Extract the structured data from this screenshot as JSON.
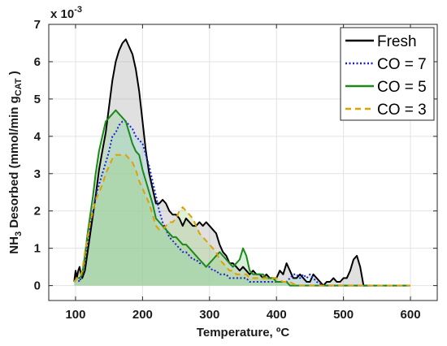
{
  "chart_data": {
    "type": "area",
    "xlabel": "Temperature, ºC",
    "ylabel": "NH3 Desorbed (mmol/min gCAT)",
    "ylabel_parts": {
      "pre": "NH",
      "sub1": "3",
      "mid": " Desorbed (mmol/min g",
      "sub2": "CAT",
      "post": " )"
    },
    "y_multiplier": "x 10",
    "y_multiplier_exp": "-3",
    "xlim": [
      60,
      640
    ],
    "ylim": [
      -0.0004,
      0.007
    ],
    "x_ticks": [
      100,
      200,
      300,
      400,
      500,
      600
    ],
    "x_tick_labels": [
      "100",
      "200",
      "300",
      "400",
      "500",
      "600"
    ],
    "y_ticks": [
      0,
      0.001,
      0.002,
      0.003,
      0.004,
      0.005,
      0.006,
      0.007
    ],
    "y_tick_labels": [
      "0",
      "1",
      "2",
      "3",
      "4",
      "5",
      "6",
      "7"
    ],
    "grid": true,
    "legend_position": "top-right",
    "series": [
      {
        "name": "Fresh",
        "color": "#000000",
        "fill": "#a0a0a0",
        "style": "solid",
        "x": [
          98,
          100,
          102,
          104,
          106,
          108,
          110,
          114,
          118,
          122,
          126,
          130,
          135,
          140,
          145,
          150,
          155,
          160,
          165,
          170,
          175,
          180,
          185,
          190,
          195,
          200,
          205,
          210,
          215,
          220,
          225,
          230,
          235,
          240,
          245,
          250,
          255,
          260,
          265,
          270,
          275,
          280,
          285,
          290,
          295,
          300,
          305,
          310,
          315,
          320,
          325,
          330,
          335,
          340,
          345,
          350,
          355,
          360,
          365,
          370,
          375,
          380,
          385,
          390,
          395,
          400,
          405,
          410,
          415,
          420,
          425,
          430,
          435,
          440,
          445,
          450,
          455,
          460,
          465,
          470,
          475,
          480,
          485,
          490,
          495,
          500,
          505,
          510,
          515,
          520,
          525,
          530,
          535,
          540
        ],
        "y": [
          0.0001,
          0.0004,
          0.0002,
          0.0004,
          0.0005,
          0.0003,
          0.0002,
          0.0004,
          0.0009,
          0.0014,
          0.0019,
          0.0024,
          0.0031,
          0.0036,
          0.0041,
          0.0048,
          0.0055,
          0.006,
          0.0063,
          0.0065,
          0.0066,
          0.0064,
          0.0062,
          0.0058,
          0.0052,
          0.0044,
          0.0036,
          0.003,
          0.0026,
          0.0022,
          0.0022,
          0.0023,
          0.0022,
          0.002,
          0.0019,
          0.0019,
          0.0018,
          0.0016,
          0.0018,
          0.0017,
          0.0016,
          0.0016,
          0.0017,
          0.0016,
          0.0017,
          0.0016,
          0.0015,
          0.0014,
          0.0011,
          0.0009,
          0.0008,
          0.0006,
          0.0006,
          0.0005,
          0.0004,
          0.0005,
          0.0004,
          0.0003,
          0.0004,
          0.0003,
          0.0003,
          0.0002,
          0.0003,
          0.0002,
          0.0002,
          0.0002,
          0.0004,
          0.0003,
          0.0006,
          0.0004,
          0.0002,
          0.0002,
          0.0003,
          0.0002,
          0.0001,
          0.0001,
          0.0003,
          0.0002,
          0.0001,
          0.0,
          0.0001,
          0.0001,
          0.0002,
          0.0001,
          0.0001,
          0.0002,
          0.0002,
          0.0004,
          0.0007,
          0.0008,
          0.0005,
          0.0,
          0.0,
          0.0
        ]
      },
      {
        "name": "CO = 7",
        "color": "#1f1fd6",
        "fill": "#9fd9e0",
        "style": "dotted",
        "x": [
          98,
          102,
          106,
          110,
          114,
          118,
          122,
          126,
          130,
          135,
          140,
          145,
          150,
          155,
          160,
          165,
          170,
          175,
          180,
          185,
          190,
          195,
          200,
          205,
          210,
          215,
          220,
          225,
          230,
          235,
          240,
          245,
          250,
          255,
          260,
          265,
          270,
          275,
          280,
          285,
          290,
          295,
          300,
          305,
          310,
          315,
          320,
          325,
          330,
          335,
          340,
          345,
          350,
          355,
          360,
          365,
          370,
          375,
          380,
          385,
          390,
          395,
          400,
          405,
          410,
          415,
          420,
          425,
          430,
          435,
          440,
          445,
          450,
          455,
          460,
          470,
          480,
          600
        ],
        "y": [
          0.0001,
          0.0002,
          0.0001,
          0.0003,
          0.0007,
          0.0012,
          0.0017,
          0.002,
          0.0024,
          0.0027,
          0.003,
          0.0033,
          0.0036,
          0.004,
          0.0041,
          0.0043,
          0.0044,
          0.0044,
          0.0043,
          0.0042,
          0.004,
          0.0039,
          0.0038,
          0.0035,
          0.0032,
          0.0028,
          0.0024,
          0.002,
          0.0017,
          0.0015,
          0.0013,
          0.0012,
          0.0011,
          0.001,
          0.0009,
          0.0009,
          0.0008,
          0.0007,
          0.0007,
          0.0006,
          0.0006,
          0.0005,
          0.0005,
          0.0004,
          0.0004,
          0.0003,
          0.0003,
          0.0003,
          0.0002,
          0.0002,
          0.0002,
          0.0002,
          0.0002,
          0.0002,
          0.0001,
          0.0001,
          0.0001,
          0.0001,
          0.0001,
          0.0001,
          0.0001,
          0.0001,
          0.0001,
          0.0001,
          0.0001,
          0.0001,
          0.0002,
          0.0003,
          0.0003,
          0.0002,
          0.0003,
          0.0002,
          0.0003,
          0.0002,
          0.0001,
          0.0,
          0.0,
          0.0
        ]
      },
      {
        "name": "CO = 5",
        "color": "#1a8a1a",
        "fill": "#8fd08f",
        "style": "solid",
        "x": [
          98,
          102,
          106,
          110,
          114,
          118,
          122,
          126,
          130,
          135,
          140,
          145,
          150,
          155,
          160,
          165,
          170,
          175,
          180,
          185,
          190,
          195,
          200,
          205,
          210,
          215,
          220,
          225,
          230,
          235,
          240,
          245,
          250,
          255,
          260,
          265,
          270,
          275,
          280,
          285,
          290,
          295,
          300,
          305,
          310,
          315,
          320,
          325,
          330,
          335,
          340,
          345,
          350,
          355,
          360,
          365,
          370,
          375,
          380,
          385,
          390,
          395,
          400,
          405,
          410,
          415,
          420,
          430,
          440,
          450,
          600
        ],
        "y": [
          0.0001,
          0.0002,
          0.0002,
          0.0003,
          0.0008,
          0.0014,
          0.0019,
          0.0024,
          0.003,
          0.0036,
          0.004,
          0.0044,
          0.0045,
          0.0046,
          0.0047,
          0.0046,
          0.0045,
          0.0044,
          0.0041,
          0.0038,
          0.0036,
          0.0035,
          0.0031,
          0.0028,
          0.0025,
          0.0022,
          0.0018,
          0.0017,
          0.0016,
          0.0015,
          0.0014,
          0.0013,
          0.0013,
          0.0012,
          0.0011,
          0.0011,
          0.001,
          0.0009,
          0.0008,
          0.0007,
          0.0006,
          0.0005,
          0.0006,
          0.0007,
          0.0008,
          0.0009,
          0.0008,
          0.0007,
          0.0006,
          0.0005,
          0.0006,
          0.0007,
          0.001,
          0.0008,
          0.0004,
          0.0003,
          0.0003,
          0.0003,
          0.0003,
          0.0002,
          0.0002,
          0.0002,
          0.0001,
          0.0001,
          0.0001,
          0.0001,
          0.0,
          0.0,
          0.0,
          0.0,
          0.0
        ]
      },
      {
        "name": "CO = 3",
        "color": "#e0a000",
        "fill": "#9fd47f",
        "style": "dashed",
        "x": [
          98,
          102,
          106,
          110,
          114,
          118,
          122,
          126,
          130,
          135,
          140,
          145,
          150,
          155,
          160,
          165,
          170,
          175,
          180,
          185,
          190,
          195,
          200,
          205,
          210,
          215,
          220,
          225,
          230,
          235,
          240,
          245,
          250,
          255,
          260,
          265,
          270,
          275,
          280,
          285,
          290,
          295,
          300,
          305,
          310,
          315,
          320,
          325,
          330,
          335,
          340,
          345,
          350,
          355,
          360,
          365,
          370,
          375,
          380,
          385,
          390,
          395,
          400,
          410,
          420,
          430,
          440,
          450,
          600
        ],
        "y": [
          0.0001,
          0.0002,
          0.0002,
          0.0004,
          0.0009,
          0.0013,
          0.0017,
          0.002,
          0.0023,
          0.0025,
          0.0027,
          0.003,
          0.0032,
          0.0034,
          0.0035,
          0.0035,
          0.0035,
          0.0035,
          0.0034,
          0.0033,
          0.0031,
          0.0028,
          0.0026,
          0.0024,
          0.0022,
          0.0019,
          0.0016,
          0.0015,
          0.0015,
          0.0016,
          0.0017,
          0.0017,
          0.0018,
          0.002,
          0.0021,
          0.002,
          0.0019,
          0.0018,
          0.0016,
          0.0014,
          0.0013,
          0.0012,
          0.0011,
          0.001,
          0.0009,
          0.0007,
          0.0006,
          0.0005,
          0.0004,
          0.0004,
          0.0003,
          0.0003,
          0.0003,
          0.0003,
          0.0002,
          0.0002,
          0.0002,
          0.0002,
          0.0002,
          0.0002,
          0.0002,
          0.0002,
          0.0002,
          0.0001,
          0.0001,
          0.0,
          0.0,
          0.0,
          0.0
        ]
      }
    ]
  }
}
